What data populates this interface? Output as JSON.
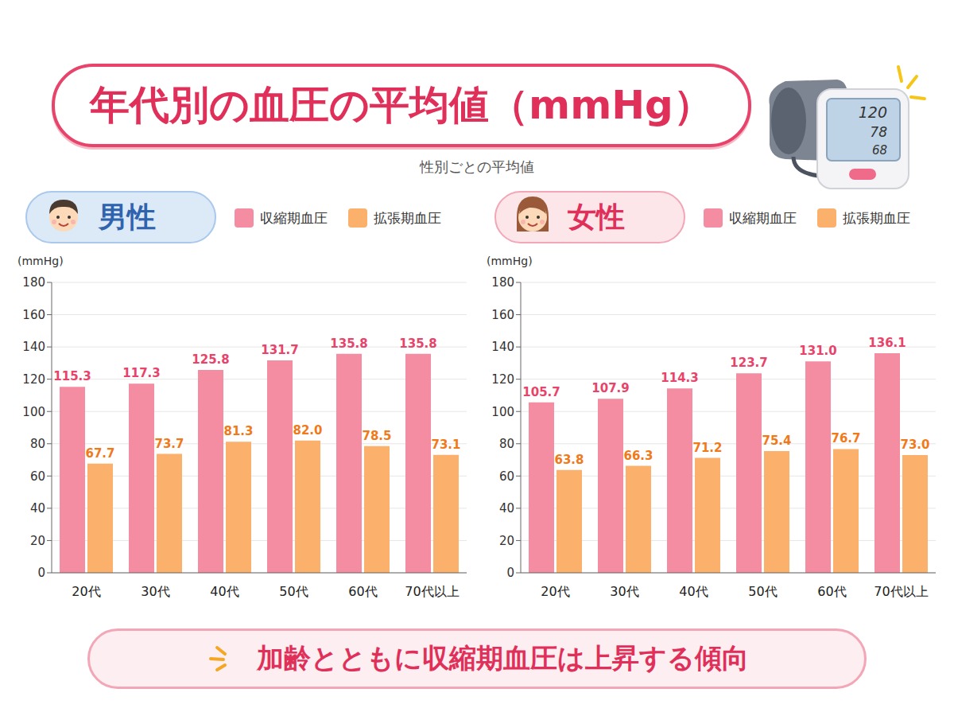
{
  "title": "年代別の血圧の平均値（mmHg）",
  "subtitle": "性別ごとの平均値",
  "footer": "加齢とともに収縮期血圧は上昇する傾向",
  "monitor_display": [
    120,
    78,
    68
  ],
  "chart_data": [
    {
      "type": "bar",
      "title": "男性",
      "y_label": "(mmHg)",
      "categories": [
        "20代",
        "30代",
        "40代",
        "50代",
        "60代",
        "70代以上"
      ],
      "series": [
        {
          "name": "収縮期血圧",
          "color": "#f48ca2",
          "values": [
            115.3,
            117.3,
            125.8,
            131.7,
            135.8,
            135.8
          ],
          "value_labels": [
            "115.3",
            "117.3",
            "125.8",
            "131.7",
            "135.8",
            "135.8"
          ]
        },
        {
          "name": "拡張期血圧",
          "color": "#fbb06b",
          "values": [
            67.7,
            73.7,
            81.3,
            82.0,
            78.5,
            73.1
          ],
          "value_labels": [
            "67.7",
            "73.7",
            "81.3",
            "82.0",
            "78.5",
            "73.1"
          ]
        }
      ],
      "ylim": [
        0,
        180
      ],
      "yticks": [
        0,
        20,
        40,
        60,
        80,
        100,
        120,
        140,
        160,
        180
      ],
      "grid": true,
      "data_labels": true,
      "legend": "top"
    },
    {
      "type": "bar",
      "title": "女性",
      "y_label": "(mmHg)",
      "categories": [
        "20代",
        "30代",
        "40代",
        "50代",
        "60代",
        "70代以上"
      ],
      "series": [
        {
          "name": "収縮期血圧",
          "color": "#f48ca2",
          "values": [
            105.7,
            107.9,
            114.3,
            123.7,
            131.0,
            136.1
          ],
          "value_labels": [
            "105.7",
            "107.9",
            "114.3",
            "123.7",
            "131.0",
            "136.1"
          ]
        },
        {
          "name": "拡張期血圧",
          "color": "#fbb06b",
          "values": [
            63.8,
            66.3,
            71.2,
            75.4,
            76.7,
            73.0
          ],
          "value_labels": [
            "63.8",
            "66.3",
            "71.2",
            "75.4",
            "76.7",
            "73.0"
          ]
        }
      ],
      "ylim": [
        0,
        180
      ],
      "yticks": [
        0,
        20,
        40,
        60,
        80,
        100,
        120,
        140,
        160,
        180
      ],
      "grid": true,
      "data_labels": true,
      "legend": "top"
    }
  ]
}
